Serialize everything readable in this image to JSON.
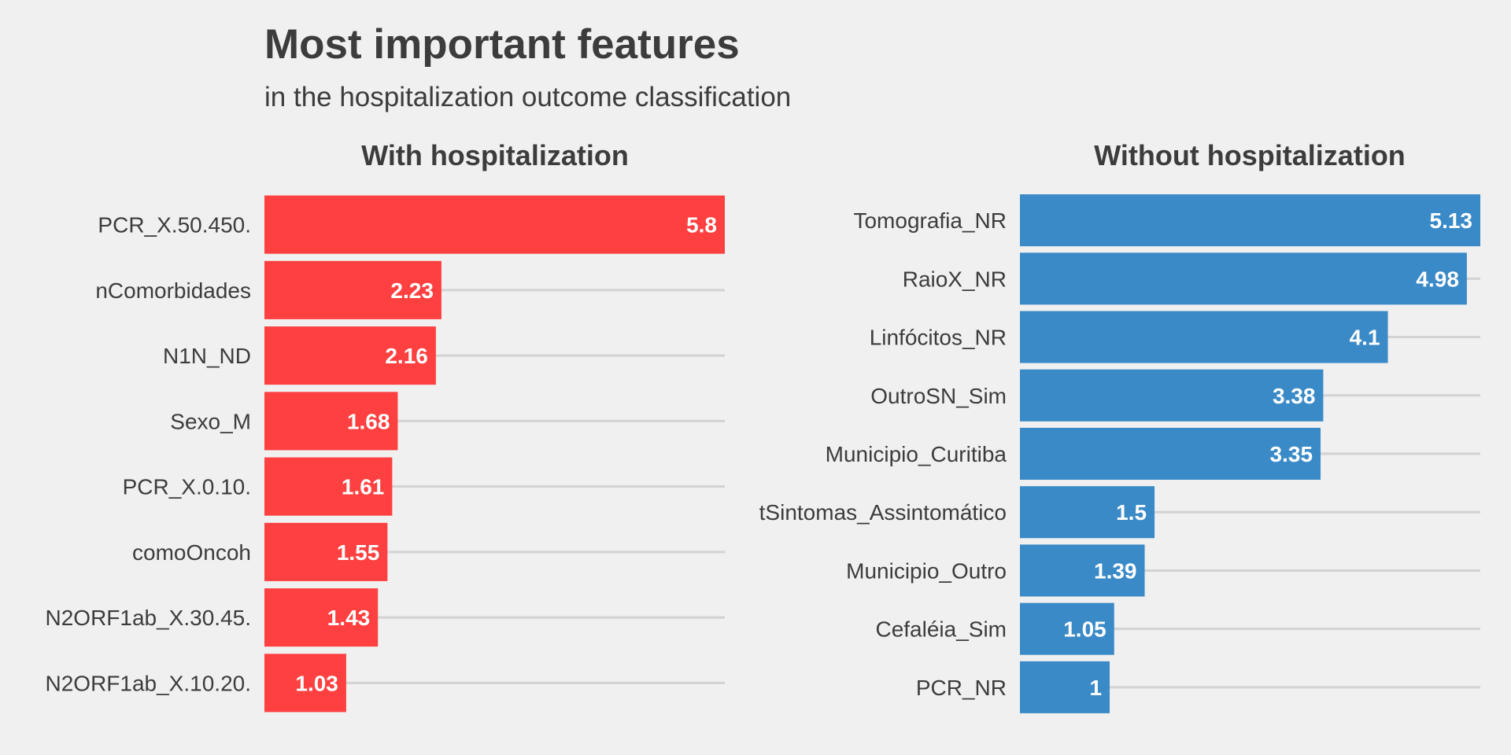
{
  "title": "Most important features",
  "subtitle": "in the hospitalization outcome classification",
  "chart_data": [
    {
      "type": "bar",
      "orientation": "horizontal",
      "title": "With hospitalization",
      "xlabel": "",
      "ylabel": "",
      "color": "#fe4041",
      "xlim": [
        0,
        5.8
      ],
      "grid": true,
      "categories": [
        "PCR_X.50.450.",
        "nComorbidades",
        "N1N_ND",
        "Sexo_M",
        "PCR_X.0.10.",
        "comoOncoh",
        "N2ORF1ab_X.30.45.",
        "N2ORF1ab_X.10.20."
      ],
      "values": [
        5.8,
        2.23,
        2.16,
        1.68,
        1.61,
        1.55,
        1.43,
        1.03
      ],
      "data_labels": [
        "5.8",
        "2.23",
        "2.16",
        "1.68",
        "1.61",
        "1.55",
        "1.43",
        "1.03"
      ]
    },
    {
      "type": "bar",
      "orientation": "horizontal",
      "title": "Without hospitalization",
      "xlabel": "",
      "ylabel": "",
      "color": "#3a8ac7",
      "xlim": [
        0,
        5.13
      ],
      "grid": true,
      "categories": [
        "Tomografia_NR",
        "RaioX_NR",
        "Linfócitos_NR",
        "OutroSN_Sim",
        "Municipio_Curitiba",
        "tSintomas_Assintomático",
        "Municipio_Outro",
        "Cefaléia_Sim",
        "PCR_NR"
      ],
      "values": [
        5.13,
        4.98,
        4.1,
        3.38,
        3.35,
        1.5,
        1.39,
        1.05,
        1
      ],
      "data_labels": [
        "5.13",
        "4.98",
        "4.1",
        "3.38",
        "3.35",
        "1.5",
        "1.39",
        "1.05",
        "1"
      ]
    }
  ]
}
